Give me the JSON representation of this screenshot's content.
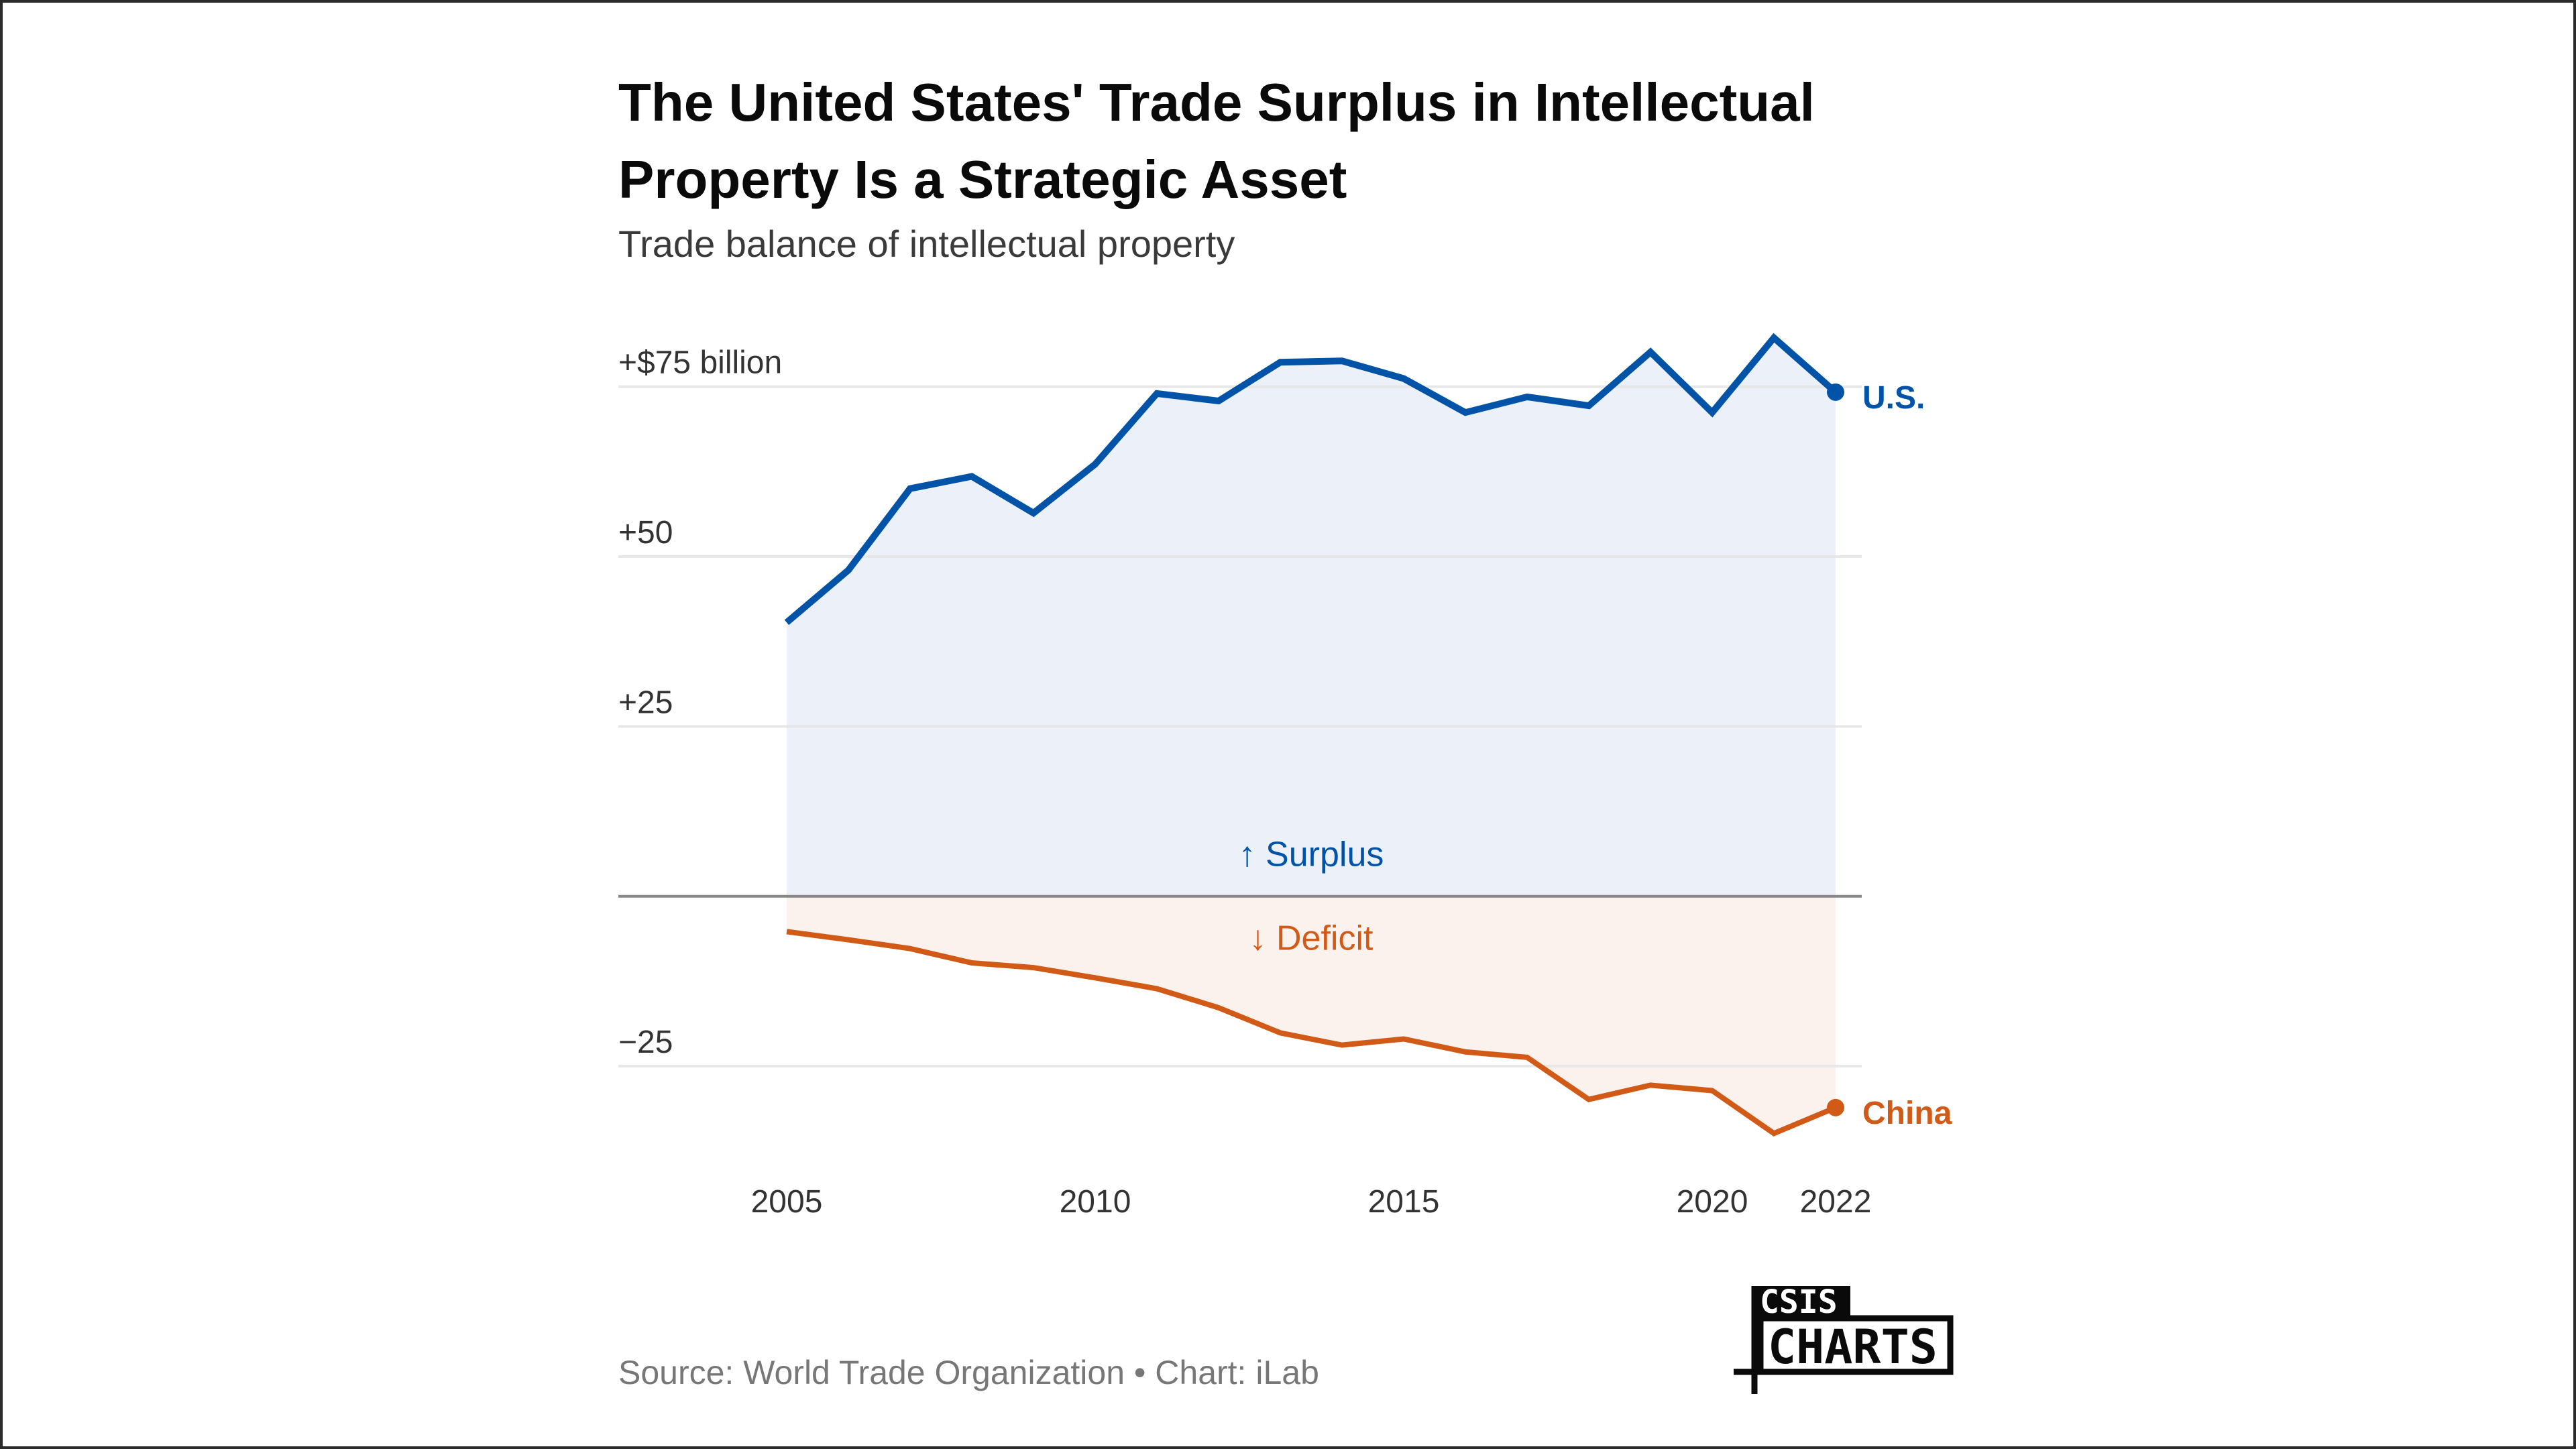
{
  "chart_data": {
    "type": "area",
    "title_lines": [
      "The United States' Trade Surplus in Intellectual",
      "Property Is a Strategic Asset"
    ],
    "subtitle": "Trade balance of intellectual property",
    "xlabel": "",
    "ylabel": "",
    "unit": "billion USD",
    "x": [
      2005,
      2006,
      2007,
      2008,
      2009,
      2010,
      2011,
      2012,
      2013,
      2014,
      2015,
      2016,
      2017,
      2018,
      2019,
      2020,
      2021,
      2022
    ],
    "series": [
      {
        "name": "U.S.",
        "color": "#0053a6",
        "fill": "#ecf1f9",
        "values": [
          40.3,
          48.0,
          60.0,
          61.8,
          56.4,
          63.6,
          74.0,
          72.9,
          78.6,
          78.8,
          76.2,
          71.2,
          73.5,
          72.2,
          80.1,
          71.2,
          82.2,
          74.2
        ]
      },
      {
        "name": "China",
        "color": "#d15a16",
        "fill": "#fbf1ed",
        "values": [
          -5.2,
          -6.4,
          -7.7,
          -9.8,
          -10.5,
          -12.0,
          -13.6,
          -16.4,
          -20.1,
          -21.9,
          -21.0,
          -22.9,
          -23.7,
          -29.9,
          -27.8,
          -28.6,
          -34.9,
          -31.1
        ]
      }
    ],
    "ylim": [
      -38,
      80
    ],
    "yticks": [
      75,
      50,
      25,
      -25
    ],
    "ytick_labels": [
      "+$75 billion",
      "+50",
      "+25",
      "−25"
    ],
    "xticks": [
      2005,
      2010,
      2015,
      2020,
      2022
    ],
    "xtick_labels": [
      "2005",
      "2010",
      "2015",
      "2020",
      "2022"
    ],
    "zero_line": true,
    "grid": true,
    "annotations": {
      "surplus": "↑ Surplus",
      "deficit": "↓ Deficit"
    },
    "legend": "direct-labels-right",
    "source": "Source: World Trade Organization • Chart: iLab"
  },
  "logo": {
    "top": "CSIS",
    "bottom": "CHARTS"
  },
  "colors": {
    "grid": "#e4e4e4",
    "zero": "#888888",
    "us": "#0053a6",
    "china": "#d15a16"
  }
}
